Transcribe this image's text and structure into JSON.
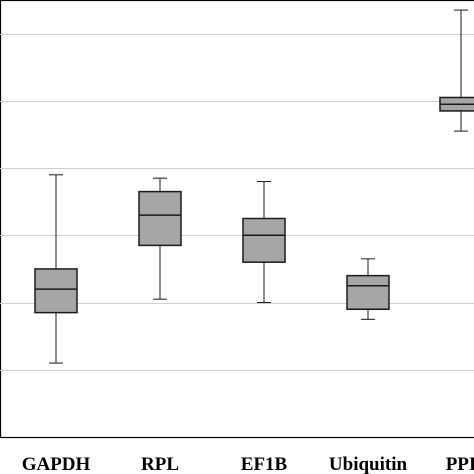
{
  "chart_data": {
    "type": "box",
    "title": "",
    "xlabel": "",
    "ylabel": "",
    "categories": [
      "GAPDH",
      "RPL",
      "EF1B",
      "Ubiquitin",
      "PPI"
    ],
    "boxes": [
      {
        "category": "GAPDH",
        "whisker_low": 21.2,
        "q1": 22.7,
        "median": 23.4,
        "q3": 24.0,
        "whisker_high": 26.8
      },
      {
        "category": "RPL",
        "whisker_low": 23.1,
        "q1": 24.7,
        "median": 25.6,
        "q3": 26.3,
        "whisker_high": 26.7
      },
      {
        "category": "EF1B",
        "whisker_low": 23.0,
        "q1": 24.2,
        "median": 25.0,
        "q3": 25.5,
        "whisker_high": 26.6
      },
      {
        "category": "Ubiquitin",
        "whisker_low": 22.5,
        "q1": 22.8,
        "median": 23.5,
        "q3": 23.8,
        "whisker_high": 24.3
      },
      {
        "category": "PPI",
        "whisker_low": 28.1,
        "q1": 28.7,
        "median": 28.9,
        "q3": 29.1,
        "whisker_high": 31.7
      }
    ],
    "ylim": [
      19,
      32
    ],
    "gridlines": [
      21,
      23,
      25,
      27,
      29,
      31
    ],
    "grid": true,
    "colors": {
      "box_fill": "#a6a6a6",
      "box_stroke": "#1a1a1a",
      "grid": "#d0d0d0",
      "axis": "#000000"
    }
  }
}
